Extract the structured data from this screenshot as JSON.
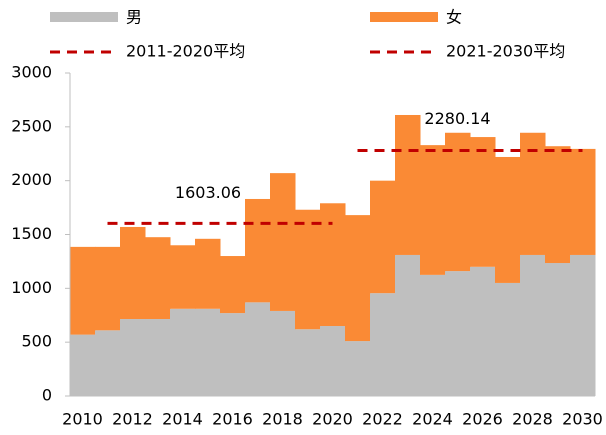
{
  "chart_data": {
    "type": "stacked_bar",
    "x": [
      2010,
      2011,
      2012,
      2013,
      2014,
      2015,
      2016,
      2017,
      2018,
      2019,
      2020,
      2021,
      2022,
      2023,
      2024,
      2025,
      2026,
      2027,
      2028,
      2029,
      2030
    ],
    "xlim": [
      2009.5,
      2030.5
    ],
    "xticks": [
      2010,
      2012,
      2014,
      2016,
      2018,
      2020,
      2022,
      2024,
      2026,
      2028,
      2030
    ],
    "ylim": [
      0,
      3000
    ],
    "yticks": [
      0,
      500,
      1000,
      1500,
      2000,
      2500,
      3000
    ],
    "series": [
      {
        "name": "男",
        "color": "#bfbfbf",
        "values": [
          570,
          610,
          715,
          715,
          810,
          810,
          770,
          870,
          790,
          620,
          650,
          510,
          955,
          1310,
          1125,
          1160,
          1200,
          1050,
          1310,
          1235,
          1310
        ]
      },
      {
        "name": "女",
        "color": "#fa8a35",
        "values": [
          815,
          775,
          855,
          760,
          590,
          650,
          530,
          960,
          1280,
          1110,
          1140,
          1170,
          1045,
          1300,
          1205,
          1285,
          1205,
          1170,
          1135,
          1085,
          985
        ]
      }
    ],
    "reference_lines": [
      {
        "name": "2011-2020平均",
        "value": 1603.06,
        "x_range": [
          2011,
          2020
        ],
        "color": "#c00000"
      },
      {
        "name": "2021-2030平均",
        "value": 2280.14,
        "x_range": [
          2021,
          2030
        ],
        "color": "#c00000"
      }
    ]
  }
}
